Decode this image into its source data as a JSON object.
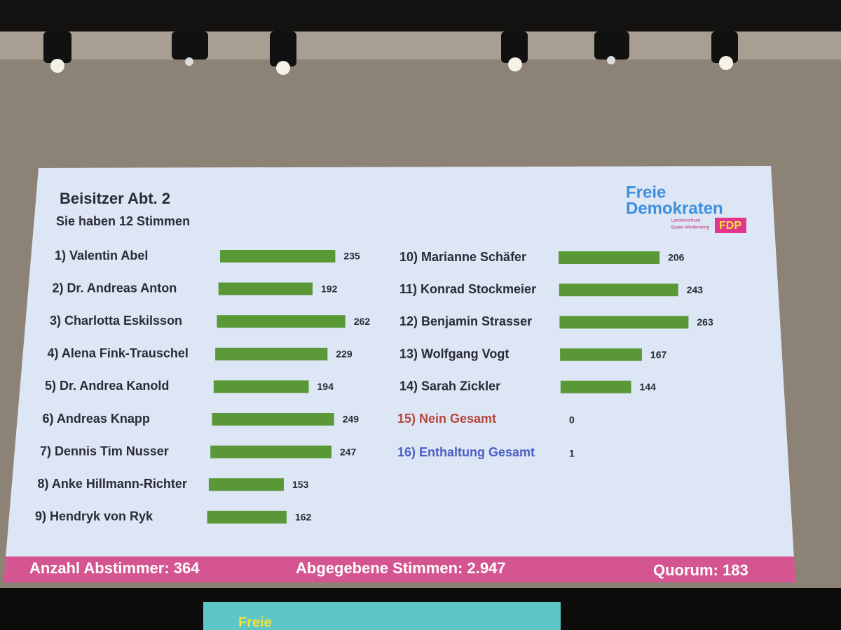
{
  "chart_data": {
    "type": "bar",
    "title": "Beisitzer Abt. 2",
    "subtitle": "Sie haben 12 Stimmen",
    "categories": [
      "1) Valentin Abel",
      "2) Dr. Andreas Anton",
      "3) Charlotta Eskilsson",
      "4) Alena Fink-Trauschel",
      "5) Dr. Andrea Kanold",
      "6) Andreas Knapp",
      "7) Dennis Tim Nusser",
      "8) Anke Hillmann-Richter",
      "9) Hendryk von Ryk",
      "10) Marianne Schäfer",
      "11) Konrad Stockmeier",
      "12) Benjamin Strasser",
      "13) Wolfgang Vogt",
      "14) Sarah Zickler"
    ],
    "values": [
      235,
      192,
      262,
      229,
      194,
      249,
      247,
      153,
      162,
      206,
      243,
      263,
      167,
      144
    ],
    "color": "#5a9837"
  },
  "totals": [
    {
      "label": "15) Nein Gesamt",
      "value": 0,
      "color": "#b5463c"
    },
    {
      "label": "16) Enthaltung Gesamt",
      "value": 1,
      "color": "#4b5fc6"
    }
  ],
  "footer": [
    "Anzahl Abstimmer: 364",
    "Abgegebene Stimmen:  2.947",
    "Quorum: 183"
  ],
  "logo": {
    "line1": "Freie",
    "line2": "Demokraten",
    "small1": "Landesverband",
    "small2": "Baden-Württemberg",
    "badge": "FDP"
  },
  "podium": "Freie"
}
